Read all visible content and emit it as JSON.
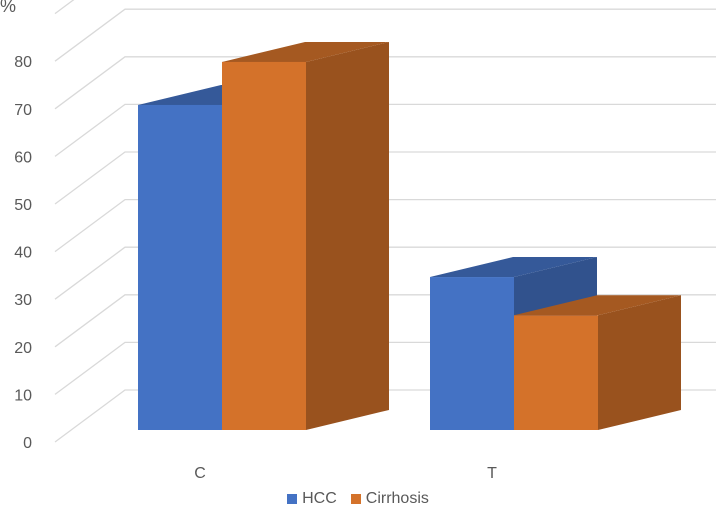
{
  "chart_data": {
    "type": "bar",
    "title": "",
    "ylabel": "%",
    "xlabel": "",
    "categories": [
      "C",
      "T"
    ],
    "series": [
      {
        "name": "HCC",
        "values": [
          68,
          32
        ],
        "color": "#4472C4"
      },
      {
        "name": "Cirrhosis",
        "values": [
          77,
          24
        ],
        "color": "#D4722A"
      }
    ],
    "ylim": [
      0,
      90
    ],
    "yticks": [
      0,
      10,
      20,
      30,
      40,
      50,
      60,
      70,
      80
    ],
    "grid": true,
    "legend": "bottom",
    "style": "3d-clustered"
  }
}
